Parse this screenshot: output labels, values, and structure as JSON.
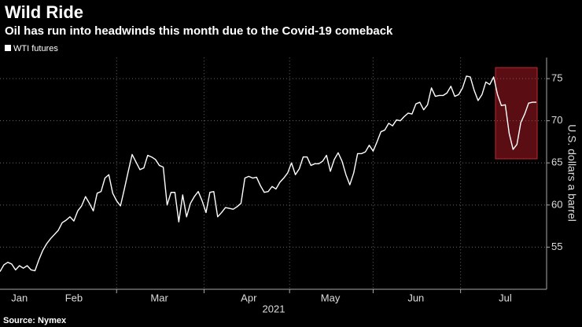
{
  "chart_data": {
    "type": "line",
    "title": "Wild Ride",
    "subtitle": "Oil has run into headwinds this month due to the Covid-19 comeback",
    "x_label": "2021",
    "y_label": "U.S. dollars a barrel",
    "source": "Source: Nymex",
    "categories": [
      null,
      null,
      null,
      null,
      null,
      "Jan",
      null,
      null,
      null,
      null,
      null,
      null,
      null,
      null,
      null,
      null,
      null,
      null,
      null,
      "Feb",
      null,
      null,
      null,
      null,
      null,
      null,
      null,
      null,
      null,
      null,
      null,
      null,
      null,
      null,
      null,
      null,
      null,
      null,
      null,
      null,
      null,
      "Mar",
      null,
      null,
      null,
      null,
      null,
      null,
      null,
      null,
      null,
      null,
      null,
      null,
      null,
      null,
      null,
      null,
      null,
      null,
      null,
      null,
      null,
      null,
      "Apr",
      null,
      null,
      null,
      null,
      null,
      null,
      null,
      null,
      null,
      null,
      null,
      null,
      null,
      null,
      null,
      null,
      null,
      null,
      null,
      null,
      "May",
      null,
      null,
      null,
      null,
      null,
      null,
      null,
      null,
      null,
      null,
      null,
      null,
      null,
      null,
      null,
      null,
      null,
      null,
      null,
      null,
      null,
      "Jun",
      null,
      null,
      null,
      null,
      null,
      null,
      null,
      null,
      null,
      null,
      null,
      null,
      null,
      null,
      null,
      null,
      null,
      null,
      null,
      null,
      null,
      null,
      "Jul",
      null,
      null,
      null,
      null,
      null,
      null,
      null,
      null
    ],
    "series": [
      {
        "name": "WTI futures",
        "color": "#ffffff",
        "values": [
          52.1,
          52.9,
          53.2,
          53.0,
          52.3,
          52.8,
          52.5,
          52.8,
          52.3,
          52.2,
          53.5,
          54.6,
          55.4,
          56.0,
          56.5,
          57.0,
          57.9,
          58.2,
          58.6,
          58.1,
          59.3,
          59.9,
          61.0,
          60.2,
          59.3,
          61.4,
          61.6,
          63.2,
          63.6,
          61.4,
          60.5,
          59.9,
          61.9,
          64.0,
          66.0,
          65.1,
          64.2,
          64.4,
          65.9,
          65.7,
          65.4,
          64.7,
          64.5,
          60.0,
          61.5,
          61.5,
          58.0,
          61.2,
          58.6,
          60.2,
          61.0,
          61.6,
          60.5,
          59.1,
          61.5,
          61.6,
          58.6,
          59.1,
          59.7,
          59.6,
          59.5,
          59.8,
          60.2,
          63.2,
          63.4,
          63.2,
          63.3,
          62.3,
          61.5,
          61.6,
          62.2,
          61.9,
          62.7,
          63.2,
          63.8,
          65.0,
          63.6,
          64.3,
          65.7,
          65.7,
          64.7,
          64.9,
          64.9,
          65.2,
          65.9,
          64.0,
          65.4,
          66.2,
          65.2,
          63.6,
          62.4,
          63.8,
          66.1,
          66.1,
          66.3,
          67.1,
          66.4,
          67.5,
          68.7,
          68.9,
          69.7,
          69.4,
          70.1,
          70.0,
          70.5,
          70.9,
          70.8,
          72.0,
          72.2,
          71.3,
          71.9,
          73.9,
          72.9,
          73.0,
          73.0,
          73.3,
          74.1,
          72.9,
          73.1,
          73.9,
          75.3,
          75.2,
          73.6,
          72.4,
          73.1,
          74.6,
          74.3,
          75.2,
          73.1,
          71.8,
          71.9,
          68.5,
          66.6,
          67.2,
          69.8,
          70.8,
          72.1,
          72.2,
          72.2
        ]
      }
    ],
    "ylim": [
      50,
      77.5
    ],
    "yticks": [
      55,
      60,
      65,
      70,
      75
    ],
    "grid": true
  }
}
